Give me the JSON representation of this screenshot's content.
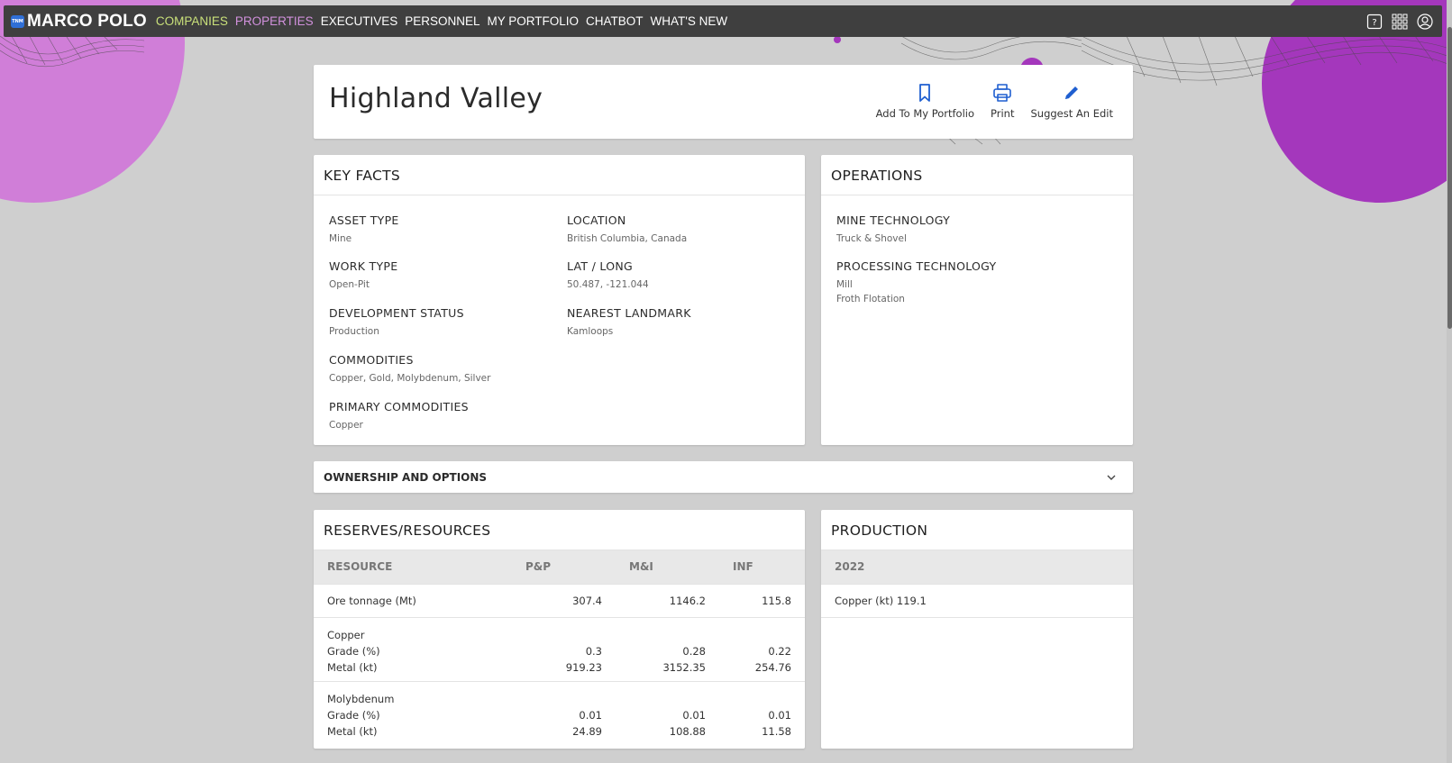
{
  "nav": {
    "brand": "MARCO POLO",
    "brand_mark": "TNM",
    "items": [
      "COMPANIES",
      "PROPERTIES",
      "EXECUTIVES",
      "PERSONNEL",
      "MY PORTFOLIO",
      "CHATBOT",
      "WHAT'S NEW"
    ],
    "icons": [
      "help-icon",
      "apps-grid-icon",
      "account-icon"
    ]
  },
  "header": {
    "title": "Highland Valley",
    "actions": [
      {
        "label": "Add To My Portfolio",
        "icon": "bookmark-icon"
      },
      {
        "label": "Print",
        "icon": "print-icon"
      },
      {
        "label": "Suggest An Edit",
        "icon": "pencil-icon"
      }
    ]
  },
  "key_facts": {
    "title": "KEY FACTS",
    "items": [
      {
        "label": "ASSET TYPE",
        "value": "Mine"
      },
      {
        "label": "LOCATION",
        "value": "British Columbia, Canada"
      },
      {
        "label": "WORK TYPE",
        "value": "Open-Pit"
      },
      {
        "label": "LAT / LONG",
        "value": "50.487, -121.044"
      },
      {
        "label": "DEVELOPMENT STATUS",
        "value": "Production"
      },
      {
        "label": "NEAREST LANDMARK",
        "value": "Kamloops"
      },
      {
        "label": "COMMODITIES",
        "value": "Copper, Gold, Molybdenum, Silver"
      },
      {
        "label": "PRIMARY COMMODITIES",
        "value": "Copper"
      }
    ]
  },
  "operations": {
    "title": "OPERATIONS",
    "items": [
      {
        "label": "MINE TECHNOLOGY",
        "values": [
          "Truck & Shovel"
        ]
      },
      {
        "label": "PROCESSING TECHNOLOGY",
        "values": [
          "Mill",
          "Froth Flotation"
        ]
      }
    ]
  },
  "ownership": {
    "title": "OWNERSHIP AND OPTIONS"
  },
  "reserves": {
    "title": "RESERVES/RESOURCES",
    "columns": [
      "RESOURCE",
      "P&P",
      "M&I",
      "INF"
    ],
    "ore": {
      "label": "Ore tonnage (Mt)",
      "pp": "307.4",
      "mi": "1146.2",
      "inf": "115.8"
    },
    "groups": [
      {
        "name": "Copper",
        "grade_label": "Grade (%)",
        "metal_label": "Metal (kt)",
        "grade": {
          "pp": "0.3",
          "mi": "0.28",
          "inf": "0.22"
        },
        "metal": {
          "pp": "919.23",
          "mi": "3152.35",
          "inf": "254.76"
        }
      },
      {
        "name": "Molybdenum",
        "grade_label": "Grade (%)",
        "metal_label": "Metal (kt)",
        "grade": {
          "pp": "0.01",
          "mi": "0.01",
          "inf": "0.01"
        },
        "metal": {
          "pp": "24.89",
          "mi": "108.88",
          "inf": "11.58"
        }
      }
    ]
  },
  "production": {
    "title": "PRODUCTION",
    "year": "2022",
    "row": "Copper (kt) 119.1"
  },
  "colors": {
    "nav_bg": "#3f3f3f",
    "companies": "#c9e07a",
    "properties": "#d291dd",
    "accent_blue": "#1f5fd0",
    "blob_light": "#d07ed8",
    "blob_dark": "#a437bc"
  }
}
